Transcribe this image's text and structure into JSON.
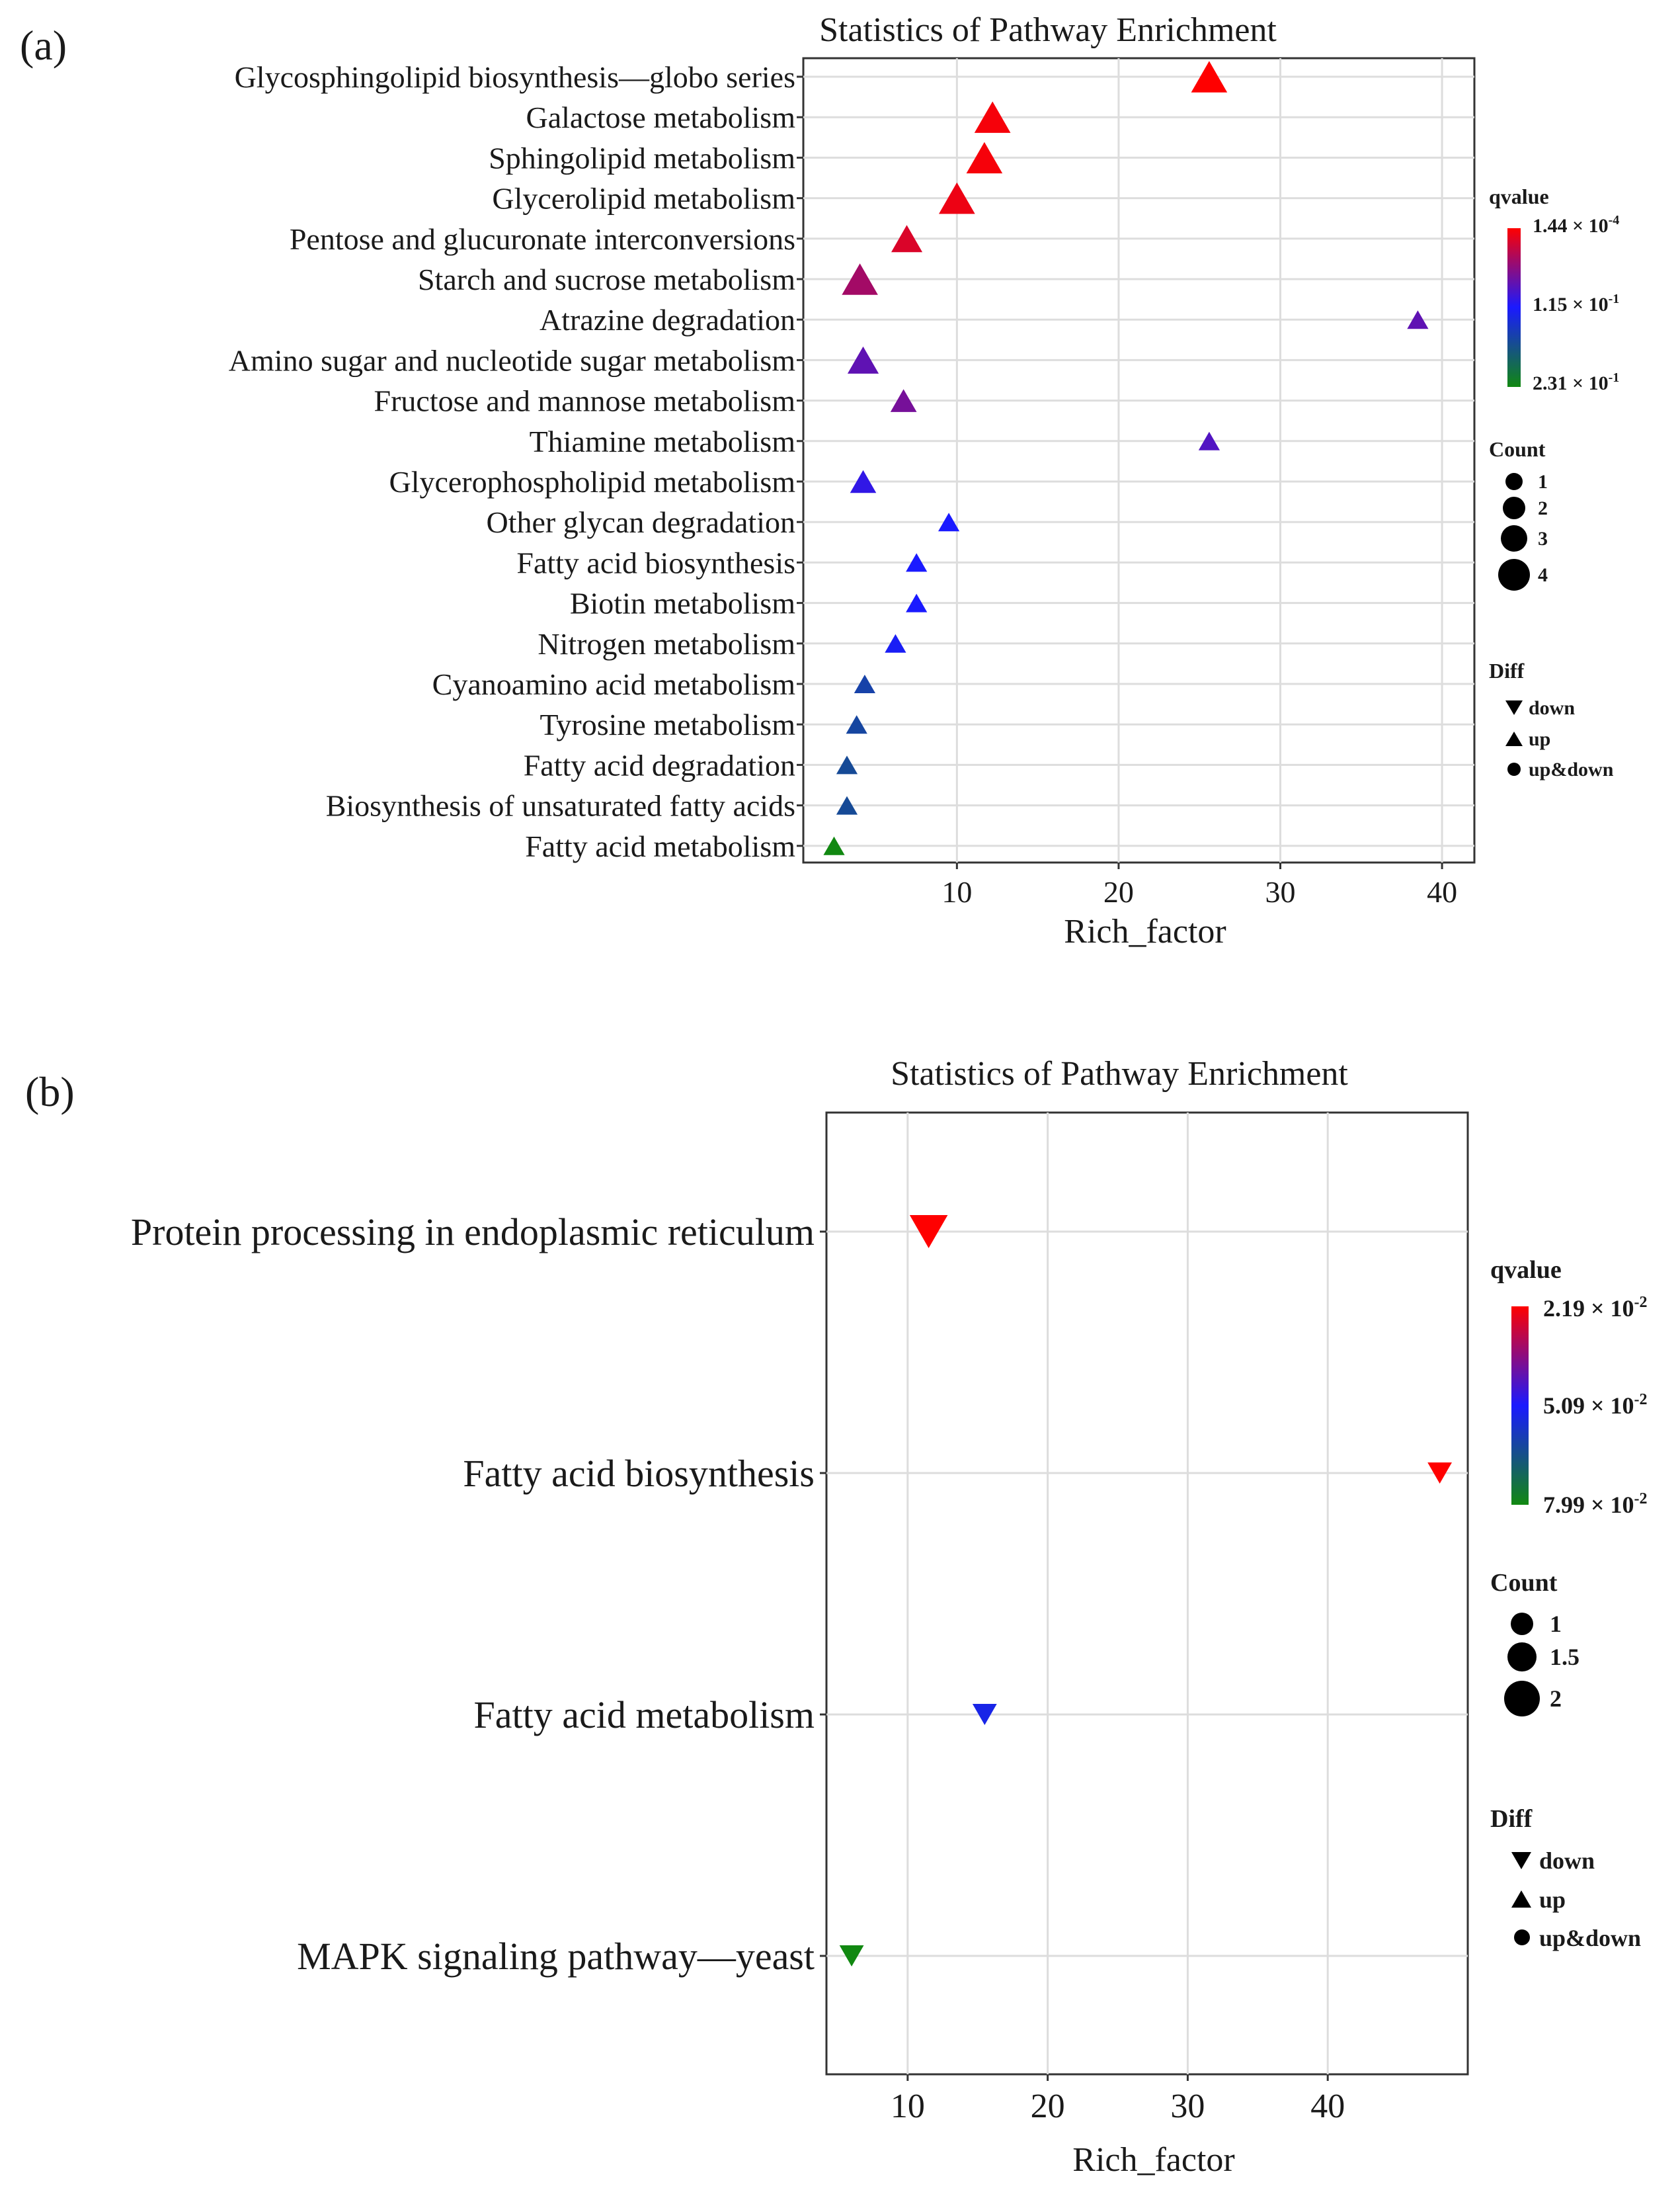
{
  "chart_data": [
    {
      "panel": "(a)",
      "type": "scatter",
      "title": "Statistics of Pathway Enrichment",
      "xlabel": "Rich_factor",
      "ylabel": "",
      "xlim": [
        0.5,
        42
      ],
      "xticks": [
        10,
        20,
        30,
        40
      ],
      "grid": true,
      "categories": [
        "Glycosphingolipid biosynthesis—globo series",
        "Galactose metabolism",
        "Sphingolipid metabolism",
        "Glycerolipid metabolism",
        "Pentose and glucuronate interconversions",
        "Starch and sucrose metabolism",
        "Atrazine degradation",
        "Amino sugar and nucleotide sugar metabolism",
        "Fructose and mannose metabolism",
        "Thiamine metabolism",
        "Glycerophospholipid metabolism",
        "Other glycan degradation",
        "Fatty acid biosynthesis",
        "Biotin metabolism",
        "Nitrogen metabolism",
        "Cyanoamino acid metabolism",
        "Tyrosine metabolism",
        "Fatty acid degradation",
        "Biosynthesis of unsaturated fatty acids",
        "Fatty acid metabolism"
      ],
      "points": [
        {
          "rich_factor": 25.6,
          "count": 4,
          "qvalue_pos": 0.0,
          "diff": "up"
        },
        {
          "rich_factor": 12.2,
          "count": 4,
          "qvalue_pos": 0.02,
          "diff": "up"
        },
        {
          "rich_factor": 11.7,
          "count": 4,
          "qvalue_pos": 0.02,
          "diff": "up"
        },
        {
          "rich_factor": 10.0,
          "count": 4,
          "qvalue_pos": 0.04,
          "diff": "up"
        },
        {
          "rich_factor": 6.9,
          "count": 3,
          "qvalue_pos": 0.08,
          "diff": "up"
        },
        {
          "rich_factor": 4.0,
          "count": 4,
          "qvalue_pos": 0.2,
          "diff": "up"
        },
        {
          "rich_factor": 38.5,
          "count": 1,
          "qvalue_pos": 0.35,
          "diff": "up"
        },
        {
          "rich_factor": 4.2,
          "count": 3,
          "qvalue_pos": 0.35,
          "diff": "up"
        },
        {
          "rich_factor": 6.7,
          "count": 2,
          "qvalue_pos": 0.3,
          "diff": "up"
        },
        {
          "rich_factor": 25.6,
          "count": 1,
          "qvalue_pos": 0.38,
          "diff": "up"
        },
        {
          "rich_factor": 4.2,
          "count": 2,
          "qvalue_pos": 0.45,
          "diff": "up"
        },
        {
          "rich_factor": 9.5,
          "count": 1,
          "qvalue_pos": 0.5,
          "diff": "up"
        },
        {
          "rich_factor": 7.5,
          "count": 1,
          "qvalue_pos": 0.5,
          "diff": "up"
        },
        {
          "rich_factor": 7.5,
          "count": 1,
          "qvalue_pos": 0.5,
          "diff": "up"
        },
        {
          "rich_factor": 6.2,
          "count": 1,
          "qvalue_pos": 0.52,
          "diff": "up"
        },
        {
          "rich_factor": 4.3,
          "count": 1,
          "qvalue_pos": 0.68,
          "diff": "up"
        },
        {
          "rich_factor": 3.8,
          "count": 1,
          "qvalue_pos": 0.7,
          "diff": "up"
        },
        {
          "rich_factor": 3.2,
          "count": 1,
          "qvalue_pos": 0.72,
          "diff": "up"
        },
        {
          "rich_factor": 3.2,
          "count": 1,
          "qvalue_pos": 0.72,
          "diff": "up"
        },
        {
          "rich_factor": 2.4,
          "count": 1,
          "qvalue_pos": 1.0,
          "diff": "up"
        }
      ],
      "legend": {
        "qvalue_title": "qvalue",
        "qvalue_labels": [
          "1.44 × 10",
          "1.15 × 10",
          "2.31 × 10"
        ],
        "qvalue_exponents": [
          "-4",
          "-1",
          "-1"
        ],
        "count_title": "Count",
        "count_levels": [
          "1",
          "2",
          "3",
          "4"
        ],
        "diff_title": "Diff",
        "diff_items": [
          "down",
          "up",
          "up&down"
        ]
      }
    },
    {
      "panel": "(b)",
      "type": "scatter",
      "title": "Statistics of Pathway Enrichment",
      "xlabel": "Rich_factor",
      "ylabel": "",
      "xlim": [
        4.2,
        50
      ],
      "xticks": [
        10,
        20,
        30,
        40
      ],
      "grid": true,
      "categories": [
        "Protein processing in endoplasmic reticulum",
        "Fatty acid biosynthesis",
        "Fatty acid metabolism",
        "MAPK signaling pathway—yeast"
      ],
      "points": [
        {
          "rich_factor": 11.5,
          "count": 2,
          "qvalue_pos": 0.0,
          "diff": "down"
        },
        {
          "rich_factor": 48.0,
          "count": 1,
          "qvalue_pos": 0.0,
          "diff": "down"
        },
        {
          "rich_factor": 15.5,
          "count": 1,
          "qvalue_pos": 0.55,
          "diff": "down"
        },
        {
          "rich_factor": 6.0,
          "count": 1,
          "qvalue_pos": 1.0,
          "diff": "down"
        }
      ],
      "legend": {
        "qvalue_title": "qvalue",
        "qvalue_labels": [
          "2.19 × 10",
          "5.09 × 10",
          "7.99 × 10"
        ],
        "qvalue_exponents": [
          "-2",
          "-2",
          "-2"
        ],
        "count_title": "Count",
        "count_levels": [
          "1",
          "1.5",
          "2"
        ],
        "diff_title": "Diff",
        "diff_items": [
          "down",
          "up",
          "up&down"
        ]
      }
    }
  ]
}
